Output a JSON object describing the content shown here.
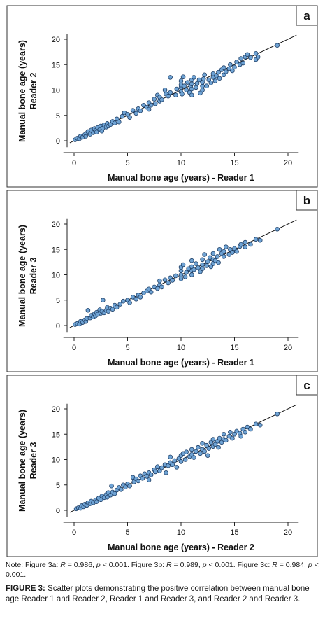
{
  "chart_data": [
    {
      "type": "scatter",
      "panel_label": "a",
      "xlabel": "Manual bone age (years) - Reader 1",
      "ylabel": [
        "Manual bone age (years)",
        "Reader 2"
      ],
      "xlim": [
        -1,
        21
      ],
      "ylim": [
        -1,
        21
      ],
      "xticks": [
        0,
        5,
        10,
        15,
        20
      ],
      "yticks": [
        0,
        5,
        10,
        15,
        20
      ],
      "identity_line": true,
      "points": [
        [
          0.1,
          0.2
        ],
        [
          0.3,
          0.5
        ],
        [
          0.5,
          0.4
        ],
        [
          0.6,
          0.9
        ],
        [
          0.8,
          0.7
        ],
        [
          1.0,
          1.2
        ],
        [
          1.1,
          0.9
        ],
        [
          1.2,
          1.5
        ],
        [
          1.3,
          1.8
        ],
        [
          1.5,
          1.3
        ],
        [
          1.6,
          2.1
        ],
        [
          1.8,
          1.6
        ],
        [
          1.9,
          2.4
        ],
        [
          2.0,
          2.0
        ],
        [
          2.1,
          1.7
        ],
        [
          2.2,
          2.6
        ],
        [
          2.4,
          2.2
        ],
        [
          2.5,
          2.9
        ],
        [
          2.6,
          1.9
        ],
        [
          2.7,
          2.5
        ],
        [
          2.8,
          3.1
        ],
        [
          3.0,
          2.7
        ],
        [
          3.1,
          3.4
        ],
        [
          3.2,
          2.9
        ],
        [
          3.4,
          3.2
        ],
        [
          3.6,
          3.8
        ],
        [
          3.8,
          3.5
        ],
        [
          4.0,
          4.3
        ],
        [
          4.2,
          3.7
        ],
        [
          4.5,
          4.8
        ],
        [
          4.7,
          5.5
        ],
        [
          5.0,
          5.2
        ],
        [
          5.2,
          4.6
        ],
        [
          5.5,
          6.0
        ],
        [
          5.8,
          5.4
        ],
        [
          6.0,
          6.3
        ],
        [
          6.2,
          5.9
        ],
        [
          6.5,
          7.0
        ],
        [
          6.8,
          6.6
        ],
        [
          7.0,
          7.5
        ],
        [
          7.0,
          6.2
        ],
        [
          7.2,
          7.0
        ],
        [
          7.5,
          8.2
        ],
        [
          7.6,
          7.3
        ],
        [
          7.8,
          9.0
        ],
        [
          8.0,
          7.8
        ],
        [
          8.0,
          8.6
        ],
        [
          8.2,
          8.1
        ],
        [
          8.5,
          10.0
        ],
        [
          8.6,
          9.2
        ],
        [
          8.8,
          8.8
        ],
        [
          9.0,
          9.5
        ],
        [
          9.0,
          12.5
        ],
        [
          9.5,
          9.0
        ],
        [
          9.6,
          10.2
        ],
        [
          10.0,
          9.6
        ],
        [
          10.0,
          10.5
        ],
        [
          10.0,
          11.0
        ],
        [
          10.0,
          11.8
        ],
        [
          10.1,
          9.2
        ],
        [
          10.2,
          12.6
        ],
        [
          10.3,
          10.8
        ],
        [
          10.5,
          10.0
        ],
        [
          10.6,
          11.5
        ],
        [
          10.8,
          9.5
        ],
        [
          10.9,
          10.8
        ],
        [
          11.0,
          9.0
        ],
        [
          11.0,
          10.2
        ],
        [
          11.0,
          11.2
        ],
        [
          11.0,
          12.0
        ],
        [
          11.2,
          12.5
        ],
        [
          11.4,
          10.5
        ],
        [
          11.5,
          11.3
        ],
        [
          11.7,
          12.0
        ],
        [
          11.8,
          9.4
        ],
        [
          12.0,
          10.0
        ],
        [
          12.0,
          10.8
        ],
        [
          12.0,
          11.5
        ],
        [
          12.1,
          12.2
        ],
        [
          12.2,
          13.0
        ],
        [
          12.4,
          10.8
        ],
        [
          12.6,
          12.0
        ],
        [
          12.8,
          11.4
        ],
        [
          13.0,
          12.5
        ],
        [
          13.0,
          13.2
        ],
        [
          13.2,
          11.8
        ],
        [
          13.3,
          12.8
        ],
        [
          13.5,
          13.5
        ],
        [
          13.6,
          12.3
        ],
        [
          13.8,
          14.0
        ],
        [
          14.0,
          13.0
        ],
        [
          14.0,
          14.4
        ],
        [
          14.2,
          13.6
        ],
        [
          14.5,
          14.2
        ],
        [
          14.6,
          15.0
        ],
        [
          14.8,
          13.8
        ],
        [
          15.0,
          14.5
        ],
        [
          15.2,
          15.5
        ],
        [
          15.5,
          15.0
        ],
        [
          15.6,
          16.2
        ],
        [
          15.8,
          15.3
        ],
        [
          16.0,
          16.5
        ],
        [
          16.2,
          17.0
        ],
        [
          16.5,
          16.4
        ],
        [
          17.0,
          16.0
        ],
        [
          17.0,
          17.2
        ],
        [
          17.2,
          16.5
        ],
        [
          19.0,
          18.8
        ]
      ]
    },
    {
      "type": "scatter",
      "panel_label": "b",
      "xlabel": "Manual bone age (years) - Reader 1",
      "ylabel": [
        "Manual bone age (years)",
        "Reader 3"
      ],
      "xlim": [
        -1,
        21
      ],
      "ylim": [
        -1,
        21
      ],
      "xticks": [
        0,
        5,
        10,
        15,
        20
      ],
      "yticks": [
        0,
        5,
        10,
        15,
        20
      ],
      "identity_line": true,
      "points": [
        [
          0.1,
          0.2
        ],
        [
          0.3,
          0.4
        ],
        [
          0.5,
          0.3
        ],
        [
          0.6,
          0.8
        ],
        [
          0.8,
          0.6
        ],
        [
          1.0,
          1.1
        ],
        [
          1.1,
          0.8
        ],
        [
          1.2,
          1.4
        ],
        [
          1.3,
          3.0
        ],
        [
          1.5,
          1.5
        ],
        [
          1.6,
          2.0
        ],
        [
          1.8,
          1.7
        ],
        [
          1.9,
          2.3
        ],
        [
          2.0,
          1.9
        ],
        [
          2.1,
          2.6
        ],
        [
          2.2,
          2.2
        ],
        [
          2.4,
          3.1
        ],
        [
          2.5,
          2.4
        ],
        [
          2.6,
          2.8
        ],
        [
          2.7,
          5.0
        ],
        [
          2.8,
          2.5
        ],
        [
          3.0,
          3.0
        ],
        [
          3.1,
          3.6
        ],
        [
          3.2,
          2.8
        ],
        [
          3.4,
          3.4
        ],
        [
          3.6,
          3.2
        ],
        [
          3.8,
          4.0
        ],
        [
          4.0,
          3.6
        ],
        [
          4.3,
          4.2
        ],
        [
          4.6,
          4.8
        ],
        [
          5.0,
          5.0
        ],
        [
          5.2,
          4.5
        ],
        [
          5.5,
          5.6
        ],
        [
          5.8,
          5.2
        ],
        [
          6.0,
          6.0
        ],
        [
          6.2,
          5.6
        ],
        [
          6.5,
          6.4
        ],
        [
          6.8,
          6.8
        ],
        [
          7.0,
          7.2
        ],
        [
          7.2,
          6.6
        ],
        [
          7.5,
          7.6
        ],
        [
          7.8,
          7.3
        ],
        [
          8.0,
          8.0
        ],
        [
          8.0,
          8.8
        ],
        [
          8.2,
          7.6
        ],
        [
          8.5,
          9.0
        ],
        [
          8.8,
          8.4
        ],
        [
          9.0,
          9.4
        ],
        [
          9.2,
          8.9
        ],
        [
          9.5,
          9.8
        ],
        [
          10.0,
          9.2
        ],
        [
          10.0,
          10.0
        ],
        [
          10.0,
          10.8
        ],
        [
          10.0,
          11.5
        ],
        [
          10.2,
          12.0
        ],
        [
          10.4,
          9.6
        ],
        [
          10.5,
          10.5
        ],
        [
          10.7,
          11.2
        ],
        [
          11.0,
          10.0
        ],
        [
          11.0,
          10.8
        ],
        [
          11.0,
          11.6
        ],
        [
          11.0,
          12.8
        ],
        [
          11.2,
          11.0
        ],
        [
          11.4,
          12.2
        ],
        [
          11.6,
          11.4
        ],
        [
          11.8,
          10.6
        ],
        [
          12.0,
          11.2
        ],
        [
          12.0,
          12.0
        ],
        [
          12.0,
          13.0
        ],
        [
          12.2,
          14.0
        ],
        [
          12.4,
          11.8
        ],
        [
          12.5,
          12.6
        ],
        [
          12.7,
          13.4
        ],
        [
          12.8,
          11.6
        ],
        [
          13.0,
          12.2
        ],
        [
          13.0,
          13.0
        ],
        [
          13.0,
          14.2
        ],
        [
          13.2,
          12.8
        ],
        [
          13.4,
          13.6
        ],
        [
          13.5,
          12.4
        ],
        [
          13.6,
          15.0
        ],
        [
          13.8,
          14.2
        ],
        [
          14.0,
          13.6
        ],
        [
          14.0,
          14.6
        ],
        [
          14.2,
          15.5
        ],
        [
          14.5,
          14.0
        ],
        [
          14.6,
          15.0
        ],
        [
          14.8,
          14.4
        ],
        [
          15.0,
          15.2
        ],
        [
          15.2,
          14.6
        ],
        [
          15.5,
          15.6
        ],
        [
          15.6,
          16.0
        ],
        [
          16.0,
          15.5
        ],
        [
          16.0,
          16.4
        ],
        [
          16.5,
          16.0
        ],
        [
          17.0,
          17.0
        ],
        [
          17.4,
          16.8
        ],
        [
          19.0,
          19.0
        ]
      ]
    },
    {
      "type": "scatter",
      "panel_label": "c",
      "xlabel": "Manual bone age (years) - Reader 2",
      "ylabel": [
        "Manual bone age (years)",
        "Reader 3"
      ],
      "xlim": [
        -1,
        21
      ],
      "ylim": [
        -1,
        21
      ],
      "xticks": [
        0,
        5,
        10,
        15,
        20
      ],
      "yticks": [
        0,
        5,
        10,
        15,
        20
      ],
      "identity_line": true,
      "points": [
        [
          0.2,
          0.3
        ],
        [
          0.4,
          0.5
        ],
        [
          0.6,
          0.4
        ],
        [
          0.7,
          0.9
        ],
        [
          0.9,
          0.7
        ],
        [
          1.0,
          1.2
        ],
        [
          1.2,
          1.0
        ],
        [
          1.3,
          1.5
        ],
        [
          1.5,
          1.3
        ],
        [
          1.6,
          1.8
        ],
        [
          1.8,
          1.5
        ],
        [
          2.0,
          2.0
        ],
        [
          2.1,
          1.7
        ],
        [
          2.3,
          2.4
        ],
        [
          2.5,
          2.1
        ],
        [
          2.6,
          2.8
        ],
        [
          2.8,
          2.5
        ],
        [
          3.0,
          3.1
        ],
        [
          3.1,
          2.6
        ],
        [
          3.2,
          3.5
        ],
        [
          3.4,
          3.0
        ],
        [
          3.5,
          4.8
        ],
        [
          3.6,
          3.6
        ],
        [
          3.8,
          3.3
        ],
        [
          4.0,
          4.0
        ],
        [
          4.2,
          4.5
        ],
        [
          4.4,
          4.1
        ],
        [
          4.6,
          5.0
        ],
        [
          4.8,
          4.6
        ],
        [
          5.0,
          5.2
        ],
        [
          5.2,
          4.8
        ],
        [
          5.5,
          6.5
        ],
        [
          5.6,
          5.6
        ],
        [
          5.8,
          6.2
        ],
        [
          6.0,
          5.8
        ],
        [
          6.2,
          6.8
        ],
        [
          6.4,
          6.3
        ],
        [
          6.6,
          7.2
        ],
        [
          6.8,
          6.7
        ],
        [
          7.0,
          6.0
        ],
        [
          7.0,
          7.4
        ],
        [
          7.2,
          7.0
        ],
        [
          7.5,
          8.0
        ],
        [
          7.6,
          7.6
        ],
        [
          7.8,
          8.6
        ],
        [
          8.0,
          7.8
        ],
        [
          8.2,
          8.4
        ],
        [
          8.5,
          9.0
        ],
        [
          8.6,
          7.4
        ],
        [
          8.8,
          8.8
        ],
        [
          9.0,
          9.4
        ],
        [
          9.0,
          10.5
        ],
        [
          9.2,
          9.0
        ],
        [
          9.4,
          9.8
        ],
        [
          9.6,
          8.5
        ],
        [
          9.8,
          10.2
        ],
        [
          10.0,
          9.6
        ],
        [
          10.0,
          10.8
        ],
        [
          10.2,
          11.2
        ],
        [
          10.4,
          10.0
        ],
        [
          10.5,
          11.5
        ],
        [
          10.8,
          10.6
        ],
        [
          11.0,
          11.0
        ],
        [
          11.0,
          12.0
        ],
        [
          11.2,
          10.4
        ],
        [
          11.4,
          11.6
        ],
        [
          11.6,
          12.4
        ],
        [
          11.8,
          11.2
        ],
        [
          12.0,
          12.0
        ],
        [
          12.0,
          13.2
        ],
        [
          12.2,
          11.6
        ],
        [
          12.4,
          12.8
        ],
        [
          12.5,
          10.8
        ],
        [
          12.6,
          12.2
        ],
        [
          12.8,
          13.4
        ],
        [
          13.0,
          12.6
        ],
        [
          13.0,
          14.0
        ],
        [
          13.2,
          13.0
        ],
        [
          13.4,
          13.6
        ],
        [
          13.5,
          12.4
        ],
        [
          13.6,
          14.2
        ],
        [
          13.8,
          13.4
        ],
        [
          14.0,
          14.0
        ],
        [
          14.0,
          15.0
        ],
        [
          14.2,
          13.8
        ],
        [
          14.5,
          14.6
        ],
        [
          14.6,
          15.4
        ],
        [
          14.8,
          14.2
        ],
        [
          15.0,
          15.0
        ],
        [
          15.2,
          15.6
        ],
        [
          15.5,
          15.2
        ],
        [
          15.6,
          14.6
        ],
        [
          15.8,
          16.0
        ],
        [
          16.0,
          15.4
        ],
        [
          16.2,
          16.4
        ],
        [
          16.5,
          16.0
        ],
        [
          17.0,
          17.0
        ],
        [
          17.4,
          16.8
        ],
        [
          19.0,
          19.0
        ]
      ]
    }
  ],
  "caption": {
    "note_parts": [
      "Note: Figure 3a: ",
      "R",
      " = 0.986, ",
      "p",
      " < 0.001. Figure 3b: ",
      "R",
      " = 0.989, ",
      "p",
      " < 0.001. Figure 3c: ",
      "R",
      " = 0.984, ",
      "p",
      " < 0.001."
    ],
    "figure_label": "FIGURE 3:",
    "figure_text": " Scatter plots demonstrating the positive correlation between manual bone age Reader 1 and Reader 2, Reader 1 and Reader 3, and Reader 2 and Reader 3."
  },
  "colors": {
    "point_fill": "#6fa3d4",
    "point_stroke": "#1f3f66",
    "frame": "#333333"
  }
}
